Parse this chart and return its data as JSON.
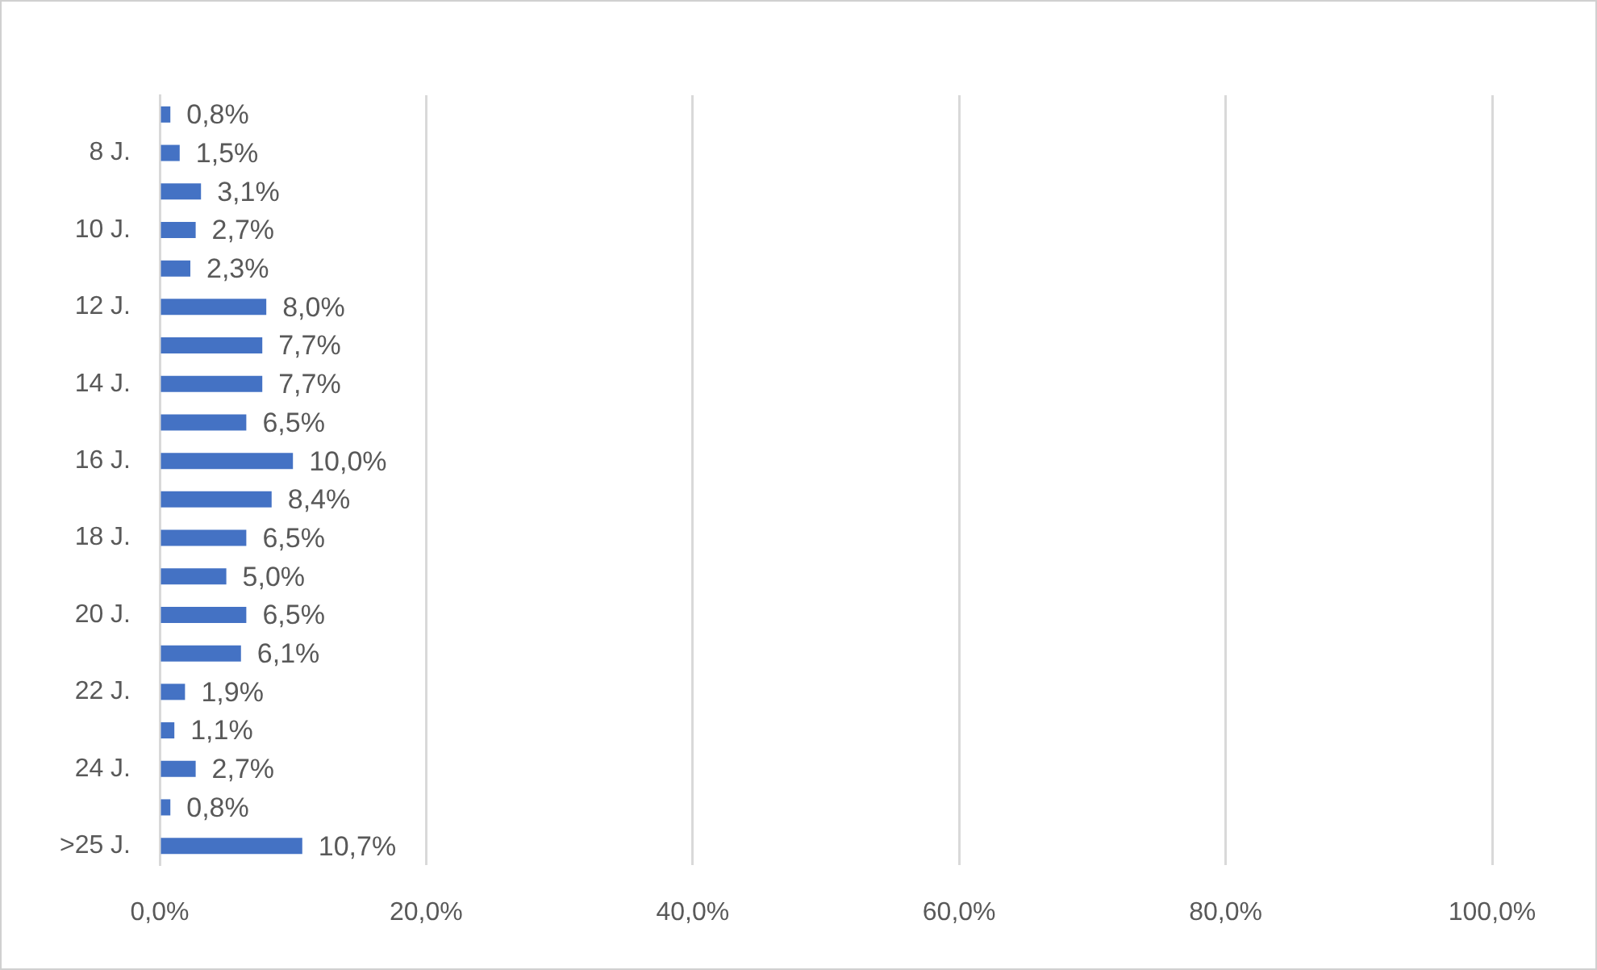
{
  "chart_data": {
    "type": "bar",
    "orientation": "horizontal",
    "categories": [
      null,
      "8 J.",
      null,
      "10 J.",
      null,
      "12 J.",
      null,
      "14 J.",
      null,
      "16 J.",
      null,
      "18 J.",
      null,
      "20 J.",
      null,
      "22 J.",
      null,
      "24 J.",
      null,
      ">25 J."
    ],
    "values": [
      0.8,
      1.5,
      3.1,
      2.7,
      2.3,
      8.0,
      7.7,
      7.7,
      6.5,
      10.0,
      8.4,
      6.5,
      5.0,
      6.5,
      6.1,
      1.9,
      1.1,
      2.7,
      0.8,
      10.7
    ],
    "value_labels": [
      "0,8%",
      "1,5%",
      "3,1%",
      "2,7%",
      "2,3%",
      "8,0%",
      "7,7%",
      "7,7%",
      "6,5%",
      "10,0%",
      "8,4%",
      "6,5%",
      "5,0%",
      "6,5%",
      "6,1%",
      "1,9%",
      "1,1%",
      "2,7%",
      "0,8%",
      "10,7%"
    ],
    "color": "#4472c4",
    "xlim": [
      0,
      100
    ],
    "xticks": [
      {
        "value": 0,
        "label": "0,0%"
      },
      {
        "value": 20,
        "label": "20,0%"
      },
      {
        "value": 40,
        "label": "40,0%"
      },
      {
        "value": 60,
        "label": "60,0%"
      },
      {
        "value": 80,
        "label": "80,0%"
      },
      {
        "value": 100,
        "label": "100,0%"
      }
    ],
    "grid": "x"
  }
}
